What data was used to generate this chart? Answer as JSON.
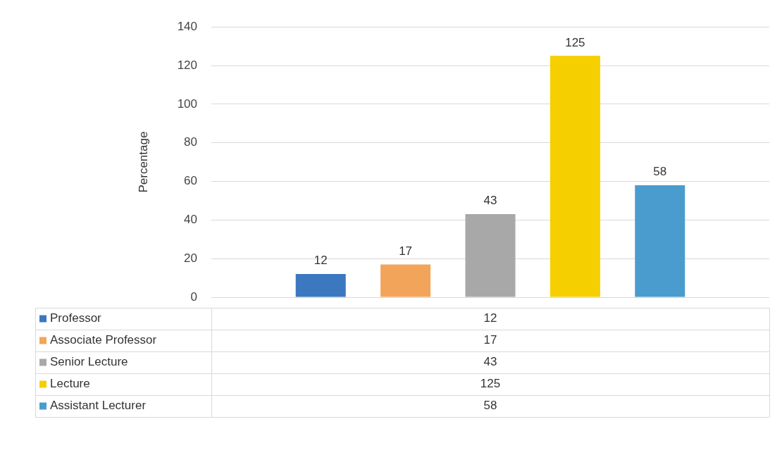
{
  "chart_data": {
    "type": "bar",
    "ylabel": "Percentage",
    "categories": [
      null
    ],
    "series": [
      {
        "name": "Professor",
        "color": "#3c78c0",
        "values": [
          12
        ]
      },
      {
        "name": "Associate Professor",
        "color": "#f2a55a",
        "values": [
          17
        ]
      },
      {
        "name": "Senior Lecture",
        "color": "#a8a8a8",
        "values": [
          43
        ]
      },
      {
        "name": "Lecture",
        "color": "#f5cf00",
        "values": [
          125
        ]
      },
      {
        "name": "Assistant Lecturer",
        "color": "#4a9ccf",
        "values": [
          58
        ]
      }
    ],
    "ylim": [
      0,
      140
    ],
    "yticks": [
      0,
      20,
      40,
      60,
      80,
      100,
      120,
      140
    ],
    "grid": "y",
    "legend": "bottom",
    "data_labels": true,
    "annotations": [
      "12",
      "17",
      "43",
      "125",
      "58"
    ]
  }
}
